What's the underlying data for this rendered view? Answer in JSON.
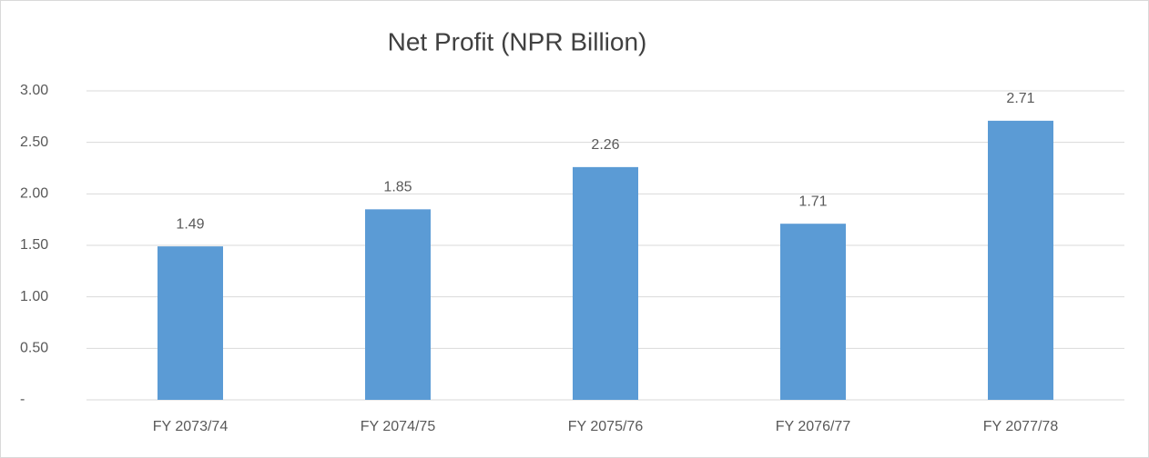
{
  "chart_data": {
    "type": "bar",
    "title": "Net Profit  (NPR Billion)",
    "categories": [
      "FY 2073/74",
      "FY 2074/75",
      "FY 2075/76",
      "FY 2076/77",
      "FY 2077/78"
    ],
    "values": [
      1.49,
      1.85,
      2.26,
      1.71,
      2.71
    ],
    "color": "#5b9bd5",
    "ylim": [
      0,
      3
    ],
    "yticks": [
      {
        "value": 0,
        "label": "-"
      },
      {
        "value": 0.5,
        "label": "0.50"
      },
      {
        "value": 1,
        "label": "1.00"
      },
      {
        "value": 1.5,
        "label": "1.50"
      },
      {
        "value": 2,
        "label": "2.00"
      },
      {
        "value": 2.5,
        "label": "2.50"
      },
      {
        "value": 3,
        "label": "3.00"
      }
    ],
    "grid": true
  }
}
